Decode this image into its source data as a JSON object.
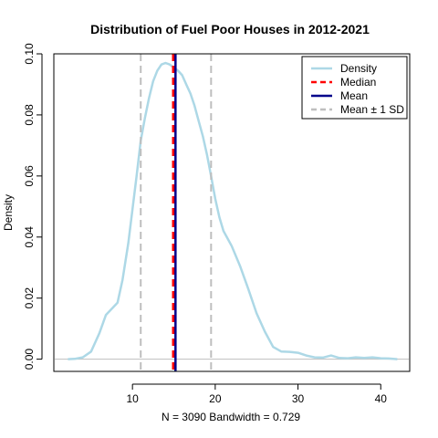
{
  "chart_data": {
    "type": "area",
    "title": "Distribution of Fuel Poor Houses in 2012-2021",
    "xlabel": "N = 3090   Bandwidth = 0.729",
    "ylabel": "Density",
    "xlim": [
      0.5,
      43.5
    ],
    "ylim": [
      -0.004,
      0.1
    ],
    "x_ticks": [
      10,
      20,
      30,
      40
    ],
    "x_tick_labels": [
      "10",
      "20",
      "30",
      "40"
    ],
    "y_ticks": [
      0.0,
      0.02,
      0.04,
      0.06,
      0.08,
      0.1
    ],
    "y_tick_labels": [
      "0.00",
      "0.02",
      "0.04",
      "0.06",
      "0.08",
      "0.10"
    ],
    "grid": false,
    "legend_position": "top-right",
    "series": [
      {
        "name": "Density",
        "color": "#add8e6",
        "x": [
          2.2,
          3,
          4,
          5,
          6,
          6.8,
          7.5,
          8.2,
          8.8,
          9.5,
          10.5,
          11,
          11.5,
          12,
          12.5,
          13,
          13.5,
          14,
          14.5,
          15,
          15.5,
          16,
          16.5,
          17,
          17.5,
          18,
          18.5,
          19,
          19.5,
          20,
          20.5,
          21,
          22,
          23,
          24,
          25,
          26,
          27,
          28,
          29,
          30,
          31,
          32,
          33,
          34,
          35,
          36,
          37,
          38,
          39,
          40,
          41,
          42
        ],
        "y": [
          0.0,
          0.0001,
          0.0006,
          0.0025,
          0.0085,
          0.0145,
          0.0165,
          0.0185,
          0.026,
          0.038,
          0.06,
          0.0715,
          0.079,
          0.0855,
          0.091,
          0.0945,
          0.0965,
          0.097,
          0.0965,
          0.0955,
          0.0945,
          0.093,
          0.09,
          0.087,
          0.083,
          0.078,
          0.073,
          0.067,
          0.06,
          0.0525,
          0.0465,
          0.042,
          0.037,
          0.0305,
          0.023,
          0.015,
          0.009,
          0.004,
          0.0025,
          0.0024,
          0.0021,
          0.0012,
          0.0006,
          0.0005,
          0.0012,
          0.0004,
          0.0003,
          0.0006,
          0.0004,
          0.0006,
          0.0003,
          0.0002,
          0.0
        ]
      }
    ],
    "reference_lines": [
      {
        "name": "Median",
        "x": 15.0,
        "color": "#ff0000",
        "style": "dashed"
      },
      {
        "name": "Mean",
        "x": 15.2,
        "color": "#00008b",
        "style": "solid"
      },
      {
        "name": "Mean ± 1 SD",
        "x": [
          11.0,
          19.5
        ],
        "color": "#bebebe",
        "style": "dashed"
      }
    ],
    "legend": [
      "Density",
      "Median",
      "Mean",
      "Mean ± 1 SD"
    ]
  }
}
